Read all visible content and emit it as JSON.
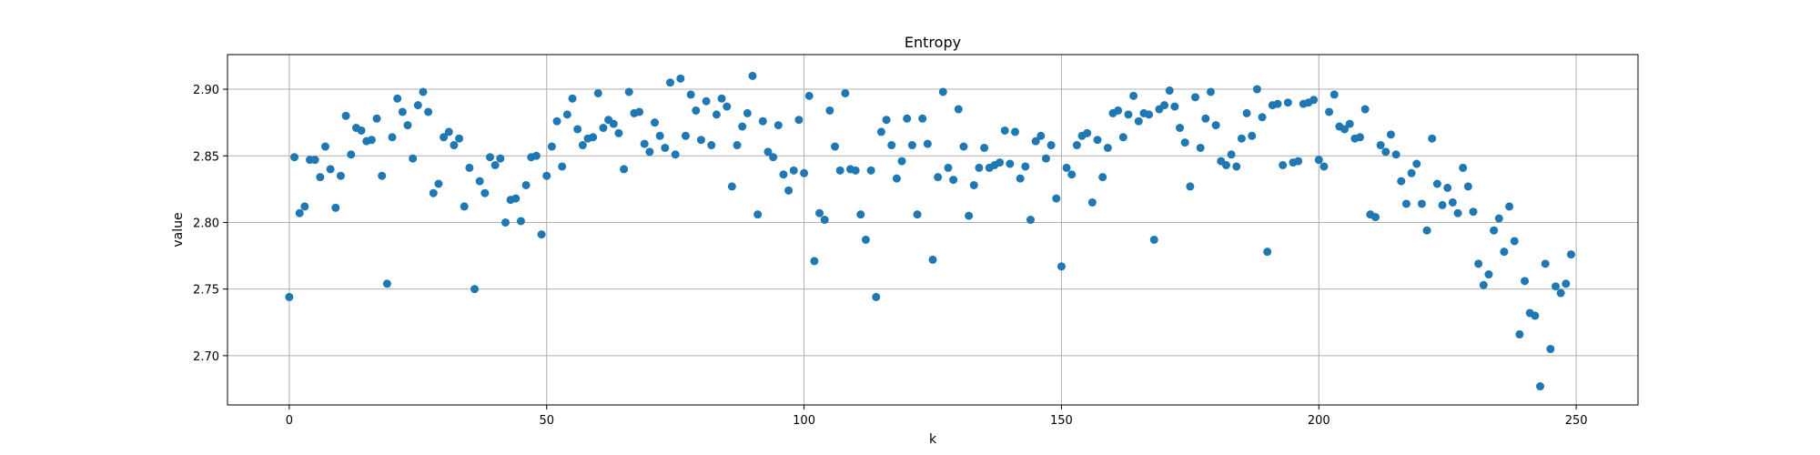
{
  "chart_data": {
    "type": "scatter",
    "title": "Entropy",
    "xlabel": "k",
    "ylabel": "value",
    "xlim": [
      -12,
      262
    ],
    "ylim": [
      2.663,
      2.926
    ],
    "xticks": [
      0,
      50,
      100,
      150,
      200,
      250
    ],
    "yticks": [
      2.7,
      2.75,
      2.8,
      2.85,
      2.9
    ],
    "xtick_labels": [
      "0",
      "50",
      "100",
      "150",
      "200",
      "250"
    ],
    "ytick_labels": [
      "2.70",
      "2.75",
      "2.80",
      "2.85",
      "2.90"
    ],
    "grid": true,
    "marker_color": "#1f77b4",
    "series": [
      {
        "x": [
          0,
          1,
          2,
          3,
          4,
          5,
          6,
          7,
          8,
          9,
          10,
          11,
          12,
          13,
          14,
          15,
          16,
          17,
          18,
          19,
          20,
          21,
          22,
          23,
          24,
          25,
          26,
          27,
          28,
          29,
          30,
          31,
          32,
          33,
          34,
          35,
          36,
          37,
          38,
          39,
          40,
          41,
          42,
          43,
          44,
          45,
          46,
          47,
          48,
          49,
          50,
          51,
          52,
          53,
          54,
          55,
          56,
          57,
          58,
          59,
          60,
          61,
          62,
          63,
          64,
          65,
          66,
          67,
          68,
          69,
          70,
          71,
          72,
          73,
          74,
          75,
          76,
          77,
          78,
          79,
          80,
          81,
          82,
          83,
          84,
          85,
          86,
          87,
          88,
          89,
          90,
          91,
          92,
          93,
          94,
          95,
          96,
          97,
          98,
          99,
          100,
          101,
          102,
          103,
          104,
          105,
          106,
          107,
          108,
          109,
          110,
          111,
          112,
          113,
          114,
          115,
          116,
          117,
          118,
          119,
          120,
          121,
          122,
          123,
          124,
          125,
          126,
          127,
          128,
          129,
          130,
          131,
          132,
          133,
          134,
          135,
          136,
          137,
          138,
          139,
          140,
          141,
          142,
          143,
          144,
          145,
          146,
          147,
          148,
          149,
          150,
          151,
          152,
          153,
          154,
          155,
          156,
          157,
          158,
          159,
          160,
          161,
          162,
          163,
          164,
          165,
          166,
          167,
          168,
          169,
          170,
          171,
          172,
          173,
          174,
          175,
          176,
          177,
          178,
          179,
          180,
          181,
          182,
          183,
          184,
          185,
          186,
          187,
          188,
          189,
          190,
          191,
          192,
          193,
          194,
          195,
          196,
          197,
          198,
          199,
          200,
          201,
          202,
          203,
          204,
          205,
          206,
          207,
          208,
          209,
          210,
          211,
          212,
          213,
          214,
          215,
          216,
          217,
          218,
          219,
          220,
          221,
          222,
          223,
          224,
          225,
          226,
          227,
          228,
          229,
          230,
          231,
          232,
          233,
          234,
          235,
          236,
          237,
          238,
          239,
          240,
          241,
          242,
          243,
          244,
          245,
          246,
          247,
          248,
          249
        ],
        "y": [
          2.744,
          2.849,
          2.807,
          2.812,
          2.847,
          2.847,
          2.834,
          2.857,
          2.84,
          2.811,
          2.835,
          2.88,
          2.851,
          2.871,
          2.869,
          2.861,
          2.862,
          2.878,
          2.835,
          2.754,
          2.864,
          2.893,
          2.883,
          2.873,
          2.848,
          2.888,
          2.898,
          2.883,
          2.822,
          2.829,
          2.864,
          2.868,
          2.858,
          2.863,
          2.812,
          2.841,
          2.75,
          2.831,
          2.822,
          2.849,
          2.843,
          2.848,
          2.8,
          2.817,
          2.818,
          2.801,
          2.828,
          2.849,
          2.85,
          2.791,
          2.835,
          2.857,
          2.876,
          2.842,
          2.881,
          2.893,
          2.87,
          2.858,
          2.863,
          2.864,
          2.897,
          2.871,
          2.877,
          2.874,
          2.867,
          2.84,
          2.898,
          2.882,
          2.883,
          2.859,
          2.853,
          2.875,
          2.865,
          2.856,
          2.905,
          2.851,
          2.908,
          2.865,
          2.896,
          2.884,
          2.862,
          2.891,
          2.858,
          2.881,
          2.893,
          2.887,
          2.827,
          2.858,
          2.872,
          2.882,
          2.91,
          2.806,
          2.876,
          2.853,
          2.849,
          2.873,
          2.836,
          2.824,
          2.839,
          2.877,
          2.837,
          2.895,
          2.771,
          2.807,
          2.802,
          2.884,
          2.857,
          2.839,
          2.897,
          2.84,
          2.839,
          2.806,
          2.787,
          2.839,
          2.744,
          2.868,
          2.877,
          2.858,
          2.833,
          2.846,
          2.878,
          2.858,
          2.806,
          2.878,
          2.859,
          2.772,
          2.834,
          2.898,
          2.841,
          2.832,
          2.885,
          2.857,
          2.805,
          2.828,
          2.841,
          2.856,
          2.841,
          2.843,
          2.845,
          2.869,
          2.844,
          2.868,
          2.833,
          2.842,
          2.802,
          2.861,
          2.865,
          2.848,
          2.858,
          2.818,
          2.767,
          2.841,
          2.836,
          2.858,
          2.865,
          2.867,
          2.815,
          2.862,
          2.834,
          2.856,
          2.882,
          2.884,
          2.864,
          2.881,
          2.895,
          2.876,
          2.882,
          2.881,
          2.787,
          2.885,
          2.888,
          2.899,
          2.887,
          2.871,
          2.86,
          2.827,
          2.894,
          2.856,
          2.878,
          2.898,
          2.873,
          2.846,
          2.843,
          2.851,
          2.842,
          2.863,
          2.882,
          2.865,
          2.9,
          2.879,
          2.778,
          2.888,
          2.889,
          2.843,
          2.89,
          2.845,
          2.846,
          2.889,
          2.89,
          2.892,
          2.847,
          2.842,
          2.883,
          2.896,
          2.872,
          2.87,
          2.874,
          2.863,
          2.864,
          2.885,
          2.806,
          2.804,
          2.858,
          2.853,
          2.866,
          2.851,
          2.831,
          2.814,
          2.837,
          2.844,
          2.814,
          2.794,
          2.863,
          2.829,
          2.813,
          2.826,
          2.815,
          2.807,
          2.841,
          2.827,
          2.808,
          2.769,
          2.753,
          2.761,
          2.794,
          2.803,
          2.778,
          2.812,
          2.786,
          2.716,
          2.756,
          2.732,
          2.73,
          2.677,
          2.769,
          2.705,
          2.752,
          2.747,
          2.754,
          2.776
        ]
      }
    ]
  }
}
